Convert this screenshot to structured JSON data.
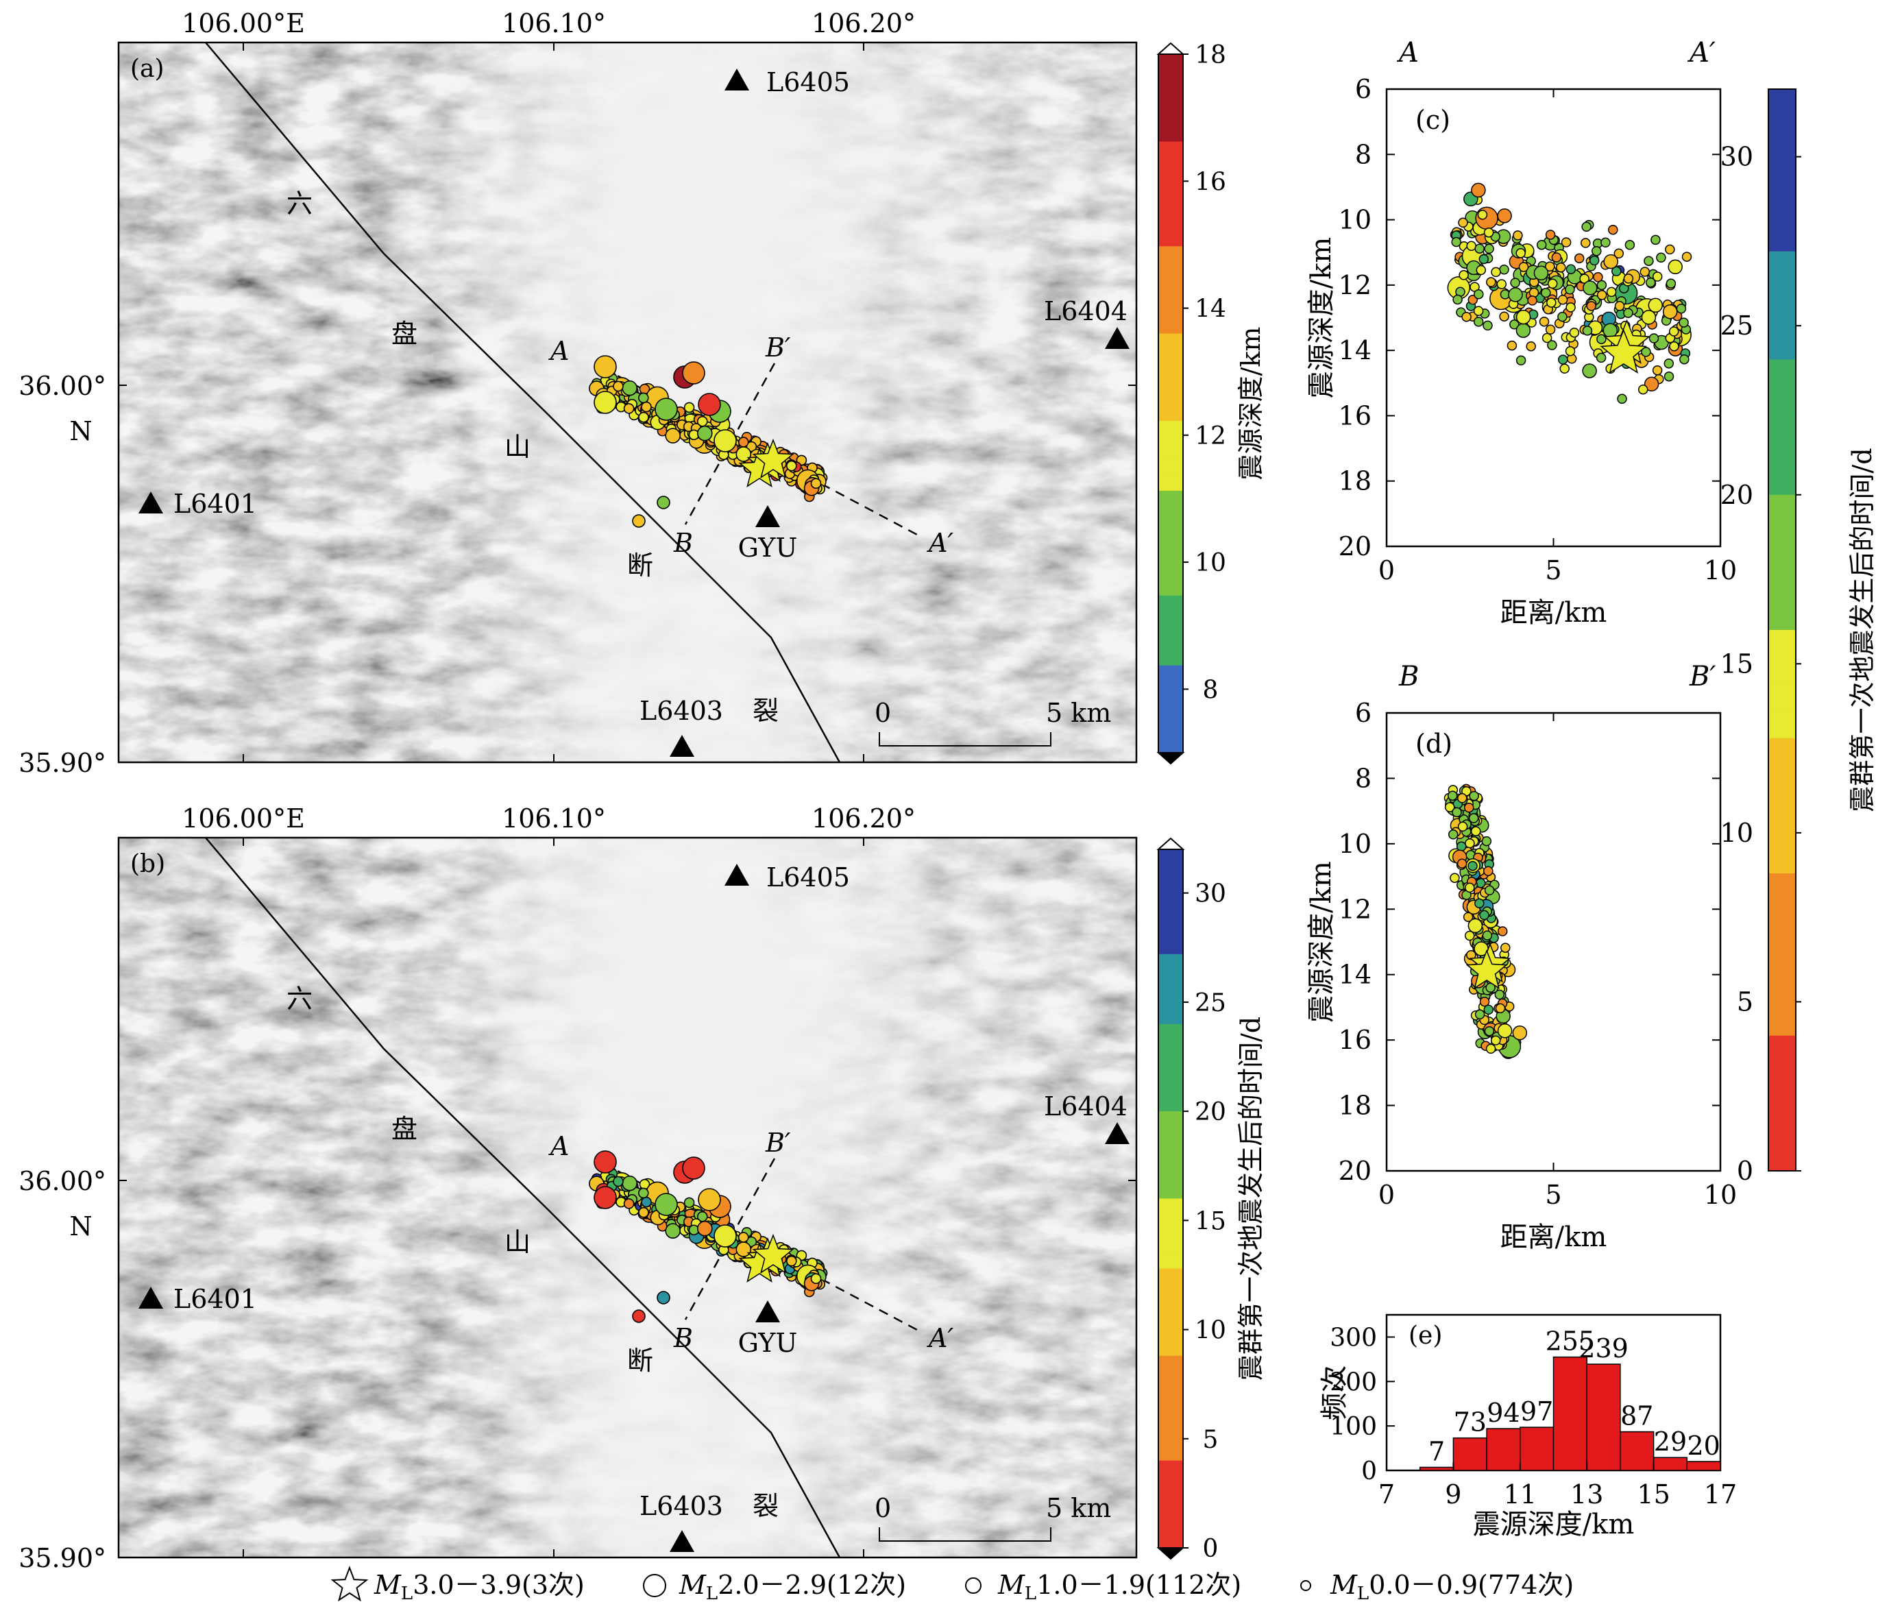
{
  "colors": {
    "frame": "#000000",
    "hist_bar": "#e31a1c",
    "terrain_dark": "#9a9a9a",
    "terrain_light": "#ececec",
    "star_fill": "#e8ea2a"
  },
  "maps": [
    {
      "panel": "(a)",
      "colorbar": {
        "label": "震源深度/km",
        "ticks": [
          "8",
          "10",
          "12",
          "14",
          "16",
          "18"
        ],
        "reversed_ramp": false
      }
    },
    {
      "panel": "(b)",
      "colorbar": {
        "label": "震群第一次地震发生后的时间/d",
        "ticks": [
          "0",
          "5",
          "10",
          "15",
          "20",
          "25",
          "30"
        ],
        "reversed_ramp": true
      }
    }
  ],
  "map_common": {
    "lon_labels": [
      "106.00°E",
      "106.10°",
      "106.20°"
    ],
    "lat_labels": [
      "36.00°",
      "35.90°"
    ],
    "lat_n": "N",
    "stations": [
      "L6405",
      "L6404",
      "L6401",
      "L6403",
      "GYU"
    ],
    "fault_chars": [
      "六",
      "盘",
      "山",
      "断",
      "裂"
    ],
    "profile_labels": {
      "a": "A",
      "a2": "A′",
      "b": "B",
      "b2": "B′"
    },
    "scale": {
      "zero": "0",
      "five": "5 km"
    }
  },
  "profiles": [
    {
      "panel": "(c)",
      "left": "A",
      "right": "A′",
      "xlabel": "距离/km",
      "ylabel": "震源深度/km",
      "xticks": [
        "0",
        "5",
        "10"
      ],
      "yticks": [
        "6",
        "8",
        "10",
        "12",
        "14",
        "16",
        "18",
        "20"
      ]
    },
    {
      "panel": "(d)",
      "left": "B",
      "right": "B′",
      "xlabel": "距离/km",
      "ylabel": "震源深度/km",
      "xticks": [
        "0",
        "5",
        "10"
      ],
      "yticks": [
        "6",
        "8",
        "10",
        "12",
        "14",
        "16",
        "18",
        "20"
      ]
    }
  ],
  "time_colorbar": {
    "label": "震群第一次地震发生后的时间/d",
    "ticks": [
      "0",
      "5",
      "10",
      "15",
      "20",
      "25",
      "30"
    ]
  },
  "chart_data": [
    {
      "type": "bar",
      "panel": "(e)",
      "categories": [
        8,
        9,
        10,
        11,
        12,
        13,
        14,
        15,
        16
      ],
      "values": [
        7,
        73,
        94,
        97,
        255,
        239,
        87,
        29,
        20
      ],
      "xlabel": "震源深度/km",
      "ylabel": "频次",
      "xticks": [
        "7",
        "9",
        "11",
        "13",
        "15",
        "17"
      ],
      "yticks": [
        "0",
        "100",
        "200",
        "300"
      ],
      "xlim": [
        7,
        17
      ],
      "ylim": [
        0,
        350
      ]
    }
  ],
  "legend": [
    {
      "mag": "3.0－3.9",
      "count": "(3次)"
    },
    {
      "mag": "2.0－2.9",
      "count": "(12次)"
    },
    {
      "mag": "1.0－1.9",
      "count": "(112次)"
    },
    {
      "mag": "0.0－0.9",
      "count": "(774次)"
    }
  ],
  "legend_prefix": "M",
  "legend_sub": "L"
}
